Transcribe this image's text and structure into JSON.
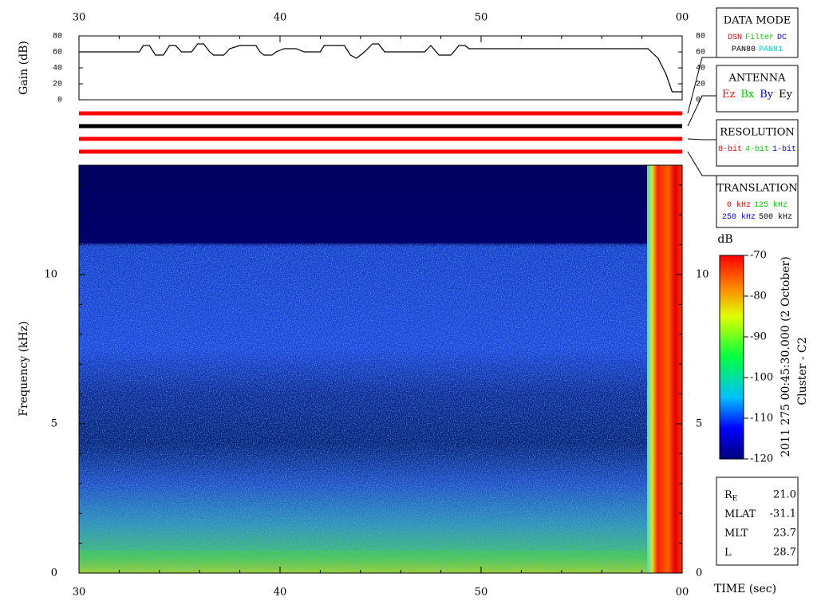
{
  "chart_data": {
    "type": "spectrogram",
    "xlim": [
      30,
      60
    ],
    "xticks": [
      30,
      40,
      50,
      {
        "value": 60,
        "label": "00"
      }
    ],
    "xminorticks": [
      32,
      34,
      36,
      38,
      42,
      44,
      46,
      48,
      52,
      54,
      56,
      58
    ],
    "xlabel": "TIME (sec)",
    "ylabel": "Frequency (kHz)",
    "ylim": [
      0,
      13.66
    ],
    "yticks": [
      0,
      5,
      10
    ],
    "yminorticks": [
      1,
      2,
      3,
      4,
      6,
      7,
      8,
      9,
      11,
      12,
      13
    ],
    "colorbar": {
      "label": "dB",
      "lim": [
        -120,
        -70
      ],
      "ticks": [
        -70,
        -80,
        -90,
        -100,
        -110,
        -120
      ]
    },
    "side_title": "2011 275 00:45:30.000 (2 October)",
    "spacecraft": "Cluster - C2"
  },
  "gain": {
    "ylabel": "Gain (dB)",
    "ylim": [
      0,
      80
    ],
    "yticks": [
      0,
      20,
      40,
      60,
      80
    ],
    "color": "#000000",
    "x": [
      30,
      33,
      33.2,
      33.5,
      33.8,
      34.2,
      34.5,
      34.8,
      35.1,
      35.6,
      35.9,
      36.2,
      36.5,
      36.7,
      37.2,
      37.5,
      38,
      38.8,
      39,
      39.2,
      39.6,
      39.8,
      40.2,
      40.8,
      41.2,
      42,
      42.2,
      43.2,
      43.5,
      43.8,
      44.2,
      44.6,
      44.9,
      45.2,
      47.2,
      47.5,
      47.9,
      48.5,
      48.9,
      49.2,
      49.4,
      58.3,
      58.8,
      59.2,
      59.5,
      60
    ],
    "values": [
      60,
      60,
      68,
      68,
      56,
      56,
      68,
      68,
      60,
      60,
      70,
      70,
      60,
      56,
      56,
      64,
      68,
      68,
      60,
      56,
      56,
      60,
      64,
      64,
      60,
      60,
      68,
      68,
      56,
      52,
      60,
      70,
      70,
      60,
      60,
      68,
      56,
      56,
      68,
      68,
      64,
      64,
      52,
      32,
      10,
      10
    ]
  },
  "status_bars": [
    "#ff0000",
    "#000000",
    "#ff0000",
    "#ff0000"
  ],
  "panels": [
    {
      "title": "DATA MODE",
      "rows": [
        [
          {
            "text": "DSN",
            "color": "#ff0000"
          },
          {
            "text": "Filter",
            "color": "#00cc00"
          },
          {
            "text": "DC",
            "color": "#0000ff"
          }
        ],
        [
          {
            "text": "PAN80",
            "color": "#000000"
          },
          {
            "text": "PAN81",
            "color": "#00cccc"
          }
        ]
      ]
    },
    {
      "title": "ANTENNA",
      "rows": [
        [
          {
            "text": "Ez",
            "color": "#ff0000"
          },
          {
            "text": "Bx",
            "color": "#00cc00"
          },
          {
            "text": "By",
            "color": "#0000ff"
          },
          {
            "text": "Ey",
            "color": "#000000"
          }
        ]
      ]
    },
    {
      "title": "RESOLUTION",
      "rows": [
        [
          {
            "text": "8-bit",
            "color": "#ff0000"
          },
          {
            "text": "4-bit",
            "color": "#00cc00"
          },
          {
            "text": "1-bit",
            "color": "#0000ff"
          }
        ]
      ]
    },
    {
      "title": "TRANSLATION",
      "rows": [
        [
          {
            "text": "0 kHz",
            "color": "#ff0000"
          },
          {
            "text": "125 kHz",
            "color": "#00cc00"
          }
        ],
        [
          {
            "text": "250 kHz",
            "color": "#0000ff"
          },
          {
            "text": "500 kHz",
            "color": "#000000"
          }
        ]
      ]
    }
  ],
  "orbit": [
    {
      "label": "R",
      "sub": "E",
      "value": "21.0"
    },
    {
      "label": "MLAT",
      "value": "-31.1"
    },
    {
      "label": "MLT",
      "value": "23.7"
    },
    {
      "label": "L",
      "value": "28.7"
    }
  ]
}
